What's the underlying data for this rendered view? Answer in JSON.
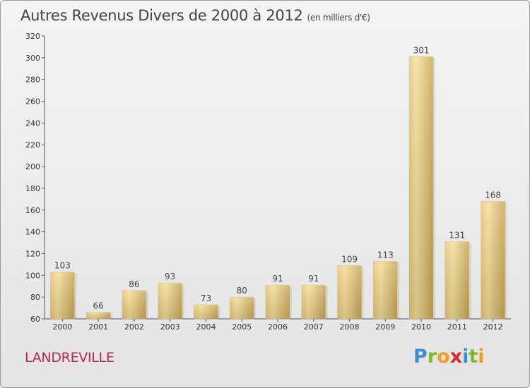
{
  "header": {
    "title": "Autres Revenus Divers de 2000 à 2012",
    "subtitle": "(en milliers d'€)"
  },
  "footer": {
    "town": "LANDREVILLE",
    "logo": {
      "p": "P",
      "r": "r",
      "o": "o",
      "x": "x",
      "i1": "i",
      "t": "t",
      "i2": "i"
    }
  },
  "colors": {
    "bar_light": "#f5dc90",
    "bar_dark": "#c9a85a",
    "town": "#b8285a",
    "grid": "#333333"
  },
  "chart_data": {
    "type": "bar",
    "title": "Autres Revenus Divers de 2000 à 2012",
    "subtitle": "(en milliers d'€)",
    "xlabel": "",
    "ylabel": "",
    "categories": [
      "2000",
      "2001",
      "2002",
      "2003",
      "2004",
      "2005",
      "2006",
      "2007",
      "2008",
      "2009",
      "2010",
      "2011",
      "2012"
    ],
    "values": [
      103,
      66,
      86,
      93,
      73,
      80,
      91,
      91,
      109,
      113,
      301,
      131,
      168
    ],
    "ylim": [
      60,
      320
    ],
    "yticks": [
      60,
      80,
      100,
      120,
      140,
      160,
      180,
      200,
      220,
      240,
      260,
      280,
      300,
      320
    ],
    "grid": false,
    "legend": "none"
  }
}
